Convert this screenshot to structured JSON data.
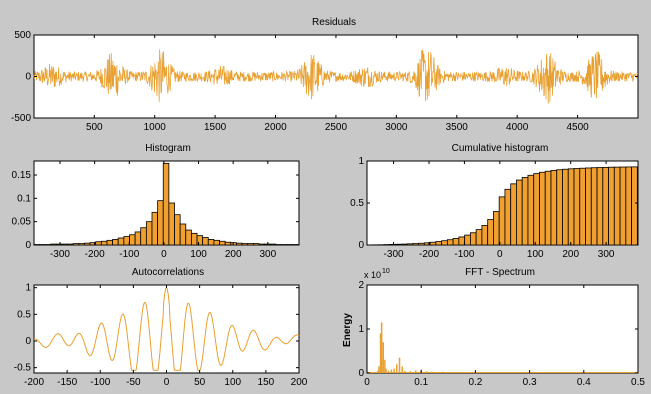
{
  "colors": {
    "background": "#c8c8c8",
    "plot_bg": "#ffffff",
    "accent": "#e8a030",
    "bar_fill": "#f0a030",
    "bar_edge": "#000000"
  },
  "chart_data": [
    {
      "id": "residuals",
      "type": "line",
      "title": "Residuals",
      "xlabel": "",
      "ylabel": "",
      "xlim": [
        1,
        5000
      ],
      "ylim": [
        -500,
        500
      ],
      "xticks": [
        500,
        1000,
        1500,
        2000,
        2500,
        3000,
        3500,
        4000,
        4500
      ],
      "yticks": [
        -500,
        0,
        500
      ],
      "series": [
        {
          "name": "",
          "n": 5000,
          "typical_abs": 60,
          "peak_abs": 350,
          "bursts_at": [
            150,
            650,
            1050,
            1550,
            2300,
            2750,
            3250,
            3900,
            4250,
            4650
          ]
        }
      ]
    },
    {
      "id": "histogram",
      "type": "bar",
      "title": "Histogram",
      "xlabel": "",
      "ylabel": "",
      "xlim": [
        -375,
        390
      ],
      "ylim": [
        0,
        0.18
      ],
      "xticks": [
        -300,
        -200,
        -100,
        0,
        100,
        200,
        300
      ],
      "yticks": [
        0,
        0.05,
        0.1,
        0.15
      ],
      "bin_width": 16.25,
      "x": [
        -367.4,
        -351.2,
        -335,
        -318.8,
        -302.5,
        -286.2,
        -270,
        -253.8,
        -237.5,
        -221.2,
        -205,
        -188.8,
        -172.5,
        -156.2,
        -140,
        -123.8,
        -107.5,
        -91.2,
        -75,
        -58.8,
        -42.5,
        -26.2,
        -10,
        6.2,
        22.5,
        38.8,
        55,
        71.2,
        87.5,
        103.8,
        120,
        136.2,
        152.5,
        168.8,
        185,
        201.2,
        217.5,
        233.8,
        250,
        266.2,
        282.5,
        298.8,
        315,
        331.2,
        347.5,
        363.8,
        380
      ],
      "values": [
        0.001,
        0.001,
        0.001,
        0.002,
        0.002,
        0.002,
        0.002,
        0.003,
        0.003,
        0.004,
        0.005,
        0.007,
        0.008,
        0.01,
        0.012,
        0.015,
        0.018,
        0.022,
        0.028,
        0.037,
        0.05,
        0.07,
        0.095,
        0.175,
        0.09,
        0.065,
        0.045,
        0.032,
        0.025,
        0.02,
        0.016,
        0.012,
        0.01,
        0.008,
        0.006,
        0.005,
        0.004,
        0.003,
        0.003,
        0.003,
        0.002,
        0.002,
        0.002,
        0.001,
        0.001,
        0.001,
        0.001
      ]
    },
    {
      "id": "cumulative",
      "type": "bar",
      "title": "Cumulative histogram",
      "xlabel": "",
      "ylabel": "",
      "xlim": [
        -375,
        390
      ],
      "ylim": [
        0,
        1
      ],
      "xticks": [
        -300,
        -200,
        -100,
        0,
        100,
        200,
        300
      ],
      "yticks": [
        0,
        0.5,
        1
      ],
      "bin_width": 16.25,
      "x": [
        -367.4,
        -351.2,
        -335,
        -318.8,
        -302.5,
        -286.2,
        -270,
        -253.8,
        -237.5,
        -221.2,
        -205,
        -188.8,
        -172.5,
        -156.2,
        -140,
        -123.8,
        -107.5,
        -91.2,
        -75,
        -58.8,
        -42.5,
        -26.2,
        -10,
        6.2,
        22.5,
        38.8,
        55,
        71.2,
        87.5,
        103.8,
        120,
        136.2,
        152.5,
        168.8,
        185,
        201.2,
        217.5,
        233.8,
        250,
        266.2,
        282.5,
        298.8,
        315,
        331.2,
        347.5,
        363.8,
        380
      ],
      "values": [
        0.001,
        0.002,
        0.003,
        0.005,
        0.007,
        0.009,
        0.011,
        0.014,
        0.017,
        0.021,
        0.026,
        0.033,
        0.041,
        0.051,
        0.063,
        0.078,
        0.096,
        0.118,
        0.146,
        0.183,
        0.233,
        0.303,
        0.398,
        0.573,
        0.663,
        0.728,
        0.773,
        0.805,
        0.83,
        0.85,
        0.866,
        0.878,
        0.888,
        0.896,
        0.902,
        0.907,
        0.911,
        0.914,
        0.917,
        0.92,
        0.922,
        0.924,
        0.926,
        0.927,
        0.928,
        0.929,
        0.93
      ]
    },
    {
      "id": "autocorrelations",
      "type": "line",
      "title": "Autocorrelations",
      "xlabel": "",
      "ylabel": "",
      "xlim": [
        -200,
        200
      ],
      "ylim": [
        -0.6,
        1.05
      ],
      "xticks": [
        -200,
        -150,
        -100,
        -50,
        0,
        50,
        100,
        150,
        200
      ],
      "yticks": [
        -0.5,
        0,
        0.5,
        1
      ],
      "peaks": {
        "lags": [
          -66,
          -33,
          0,
          33,
          66
        ],
        "values": [
          0.72,
          0.75,
          1,
          0.75,
          0.72
        ]
      }
    },
    {
      "id": "fft",
      "type": "bar",
      "title": "FFT - Spectrum",
      "xlabel": "",
      "ylabel": "Energy",
      "y_exponent": "x 10",
      "y_exponent_power": "10",
      "xlim": [
        0,
        0.5
      ],
      "ylim": [
        0,
        2
      ],
      "xticks": [
        0,
        0.1,
        0.2,
        0.3,
        0.4,
        0.5
      ],
      "yticks": [
        0,
        1,
        2
      ],
      "x": [
        0.02,
        0.022,
        0.025,
        0.027,
        0.03,
        0.033,
        0.035,
        0.04,
        0.045,
        0.05,
        0.055,
        0.06,
        0.065,
        0.07,
        0.08,
        0.09,
        0.1,
        0.11,
        0.12,
        0.14,
        0.16,
        0.18,
        0.2
      ],
      "values": [
        0.05,
        0.15,
        0.9,
        1.15,
        0.7,
        0.3,
        0.1,
        0.05,
        0.08,
        0.1,
        0.2,
        0.35,
        0.15,
        0.05,
        0.04,
        0.06,
        0.08,
        0.04,
        0.03,
        0.03,
        0.02,
        0.02,
        0.01
      ]
    }
  ]
}
